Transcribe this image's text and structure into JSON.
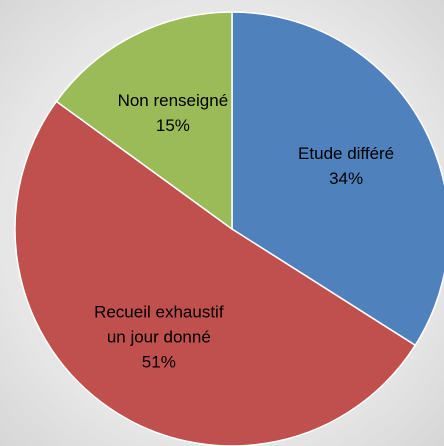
{
  "chart_data": {
    "type": "pie",
    "categories": [
      "Etude différé",
      "Recueil exhaustif un jour donné",
      "Non renseigné"
    ],
    "values": [
      34,
      51,
      15
    ],
    "value_labels": [
      "34%",
      "51%",
      "15%"
    ],
    "colors": [
      "#4f81bd",
      "#c0504d",
      "#9bbb59"
    ]
  }
}
